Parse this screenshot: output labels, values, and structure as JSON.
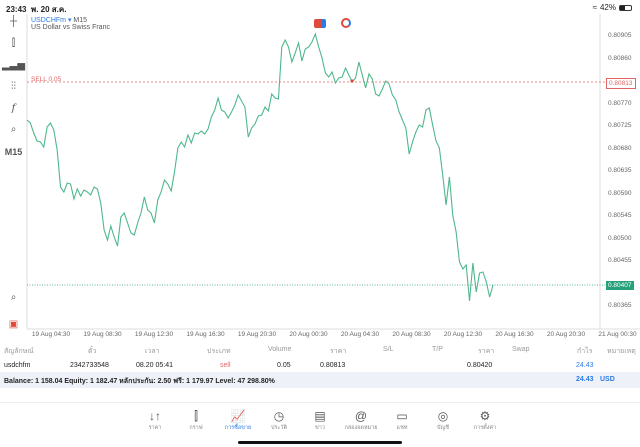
{
  "status": {
    "time": "23:43",
    "date": "พ. 20 ส.ค.",
    "battery": "42%",
    "battery_level": 0.42
  },
  "toolbar": {
    "timeframe": "M15"
  },
  "chart_header": {
    "symbol": "USDCHFm",
    "timeframe": "M15",
    "description": "US Dollar vs Swiss Franc",
    "sell_line_label": "SELL 0.05"
  },
  "chart_data": {
    "type": "line",
    "title": "USDCHFm M15",
    "ylim": [
      0.80342,
      0.80977
    ],
    "yticks": [
      "0.80905",
      "0.80860",
      "0.80770",
      "0.80725",
      "0.80680",
      "0.80635",
      "0.80590",
      "0.80545",
      "0.80500",
      "0.80455",
      "0.80365"
    ],
    "xticks": [
      "19 Aug 04:30",
      "19 Aug 08:30",
      "19 Aug 12:30",
      "19 Aug 16:30",
      "19 Aug 20:30",
      "20 Aug 00:30",
      "20 Aug 04:30",
      "20 Aug 08:30",
      "20 Aug 12:30",
      "20 Aug 16:30",
      "20 Aug 20:30",
      "21 Aug 00:30"
    ],
    "sell_price": "0.80813",
    "current_price": "0.80407",
    "sell_color": "#e06666",
    "line_color": "#4fb88c",
    "current_color": "#26a17b",
    "values": [
      0.80737,
      0.80731,
      0.80711,
      0.80695,
      0.80693,
      0.80683,
      0.80723,
      0.80731,
      0.80717,
      0.80677,
      0.80603,
      0.80593,
      0.80611,
      0.80609,
      0.80579,
      0.80599,
      0.80585,
      0.80597,
      0.80593,
      0.80587,
      0.80603,
      0.80599,
      0.80571,
      0.80517,
      0.80497,
      0.80525,
      0.80503,
      0.80485,
      0.80543,
      0.80551,
      0.80531,
      0.80511,
      0.80507,
      0.80531,
      0.80551,
      0.80583,
      0.80557,
      0.80551,
      0.80531,
      0.80577,
      0.80593,
      0.80617,
      0.80609,
      0.80595,
      0.80633,
      0.80681,
      0.80693,
      0.80683,
      0.80707,
      0.80691,
      0.80711,
      0.80709,
      0.80715,
      0.80709,
      0.80719,
      0.80743,
      0.80757,
      0.80781,
      0.80757,
      0.80753,
      0.80741,
      0.80753,
      0.80767,
      0.80787,
      0.80775,
      0.80763,
      0.80703,
      0.80721,
      0.80729,
      0.80745,
      0.80747,
      0.80763,
      0.80755,
      0.80789,
      0.80781,
      0.80779,
      0.80883,
      0.80897,
      0.80883,
      0.80853,
      0.80871,
      0.80891,
      0.80855,
      0.80879,
      0.80883,
      0.80893,
      0.80909,
      0.80883,
      0.80861,
      0.80831,
      0.80823,
      0.80833,
      0.80811,
      0.80821,
      0.80823,
      0.80841,
      0.80827,
      0.80813,
      0.80821,
      0.80853,
      0.80827,
      0.80801,
      0.80829,
      0.80819,
      0.80789,
      0.80785,
      0.80799,
      0.80815,
      0.80809,
      0.80787,
      0.80777,
      0.80753,
      0.80737,
      0.80721,
      0.80669,
      0.80693,
      0.80713,
      0.80727,
      0.80723,
      0.80757,
      0.80761,
      0.80727,
      0.80695,
      0.80681,
      0.80627,
      0.80567,
      0.80623,
      0.80547,
      0.80513,
      0.80453,
      0.80439,
      0.80447,
      0.80375,
      0.80451,
      0.80393,
      0.80431,
      0.80433,
      0.80413,
      0.80383,
      0.80407
    ],
    "sell_marker_index": 97
  },
  "table": {
    "headers": [
      "สัญลักษณ์",
      "ตั๋ว",
      "เวลา",
      "ประเภท",
      "Volume",
      "ราคา",
      "S/L",
      "T/P",
      "ราคา",
      "Swap",
      "กำไร",
      "หมายเหตุ"
    ],
    "rows": [
      {
        "symbol": "usdchfm",
        "ticket": "2342733548",
        "time": "08.20 05:41",
        "type": "sell",
        "volume": "0.05",
        "open_price": "0.80813",
        "sl": "",
        "tp": "",
        "price": "0.80420",
        "swap": "",
        "profit": "24.43",
        "comment": ""
      }
    ]
  },
  "balance": {
    "text": "Balance: 1 158.04 Equity: 1 182.47 หลักประกัน: 2.50 ฟรี: 1 179.97 Level: 47 298.80%",
    "profit": "24.43",
    "currency": "USD"
  },
  "nav": [
    {
      "label": "ราคา",
      "icon": "↓↑"
    },
    {
      "label": "กราฟ",
      "icon": "⫿"
    },
    {
      "label": "การซื้อขาย",
      "icon": "📈"
    },
    {
      "label": "ประวัติ",
      "icon": "◷"
    },
    {
      "label": "ข่าว",
      "icon": "▤"
    },
    {
      "label": "กล่องจดหมาย",
      "icon": "@"
    },
    {
      "label": "แชท",
      "icon": "▭"
    },
    {
      "label": "บัญชี",
      "icon": "◎"
    },
    {
      "label": "การตั้งค่า",
      "icon": "⚙"
    }
  ]
}
